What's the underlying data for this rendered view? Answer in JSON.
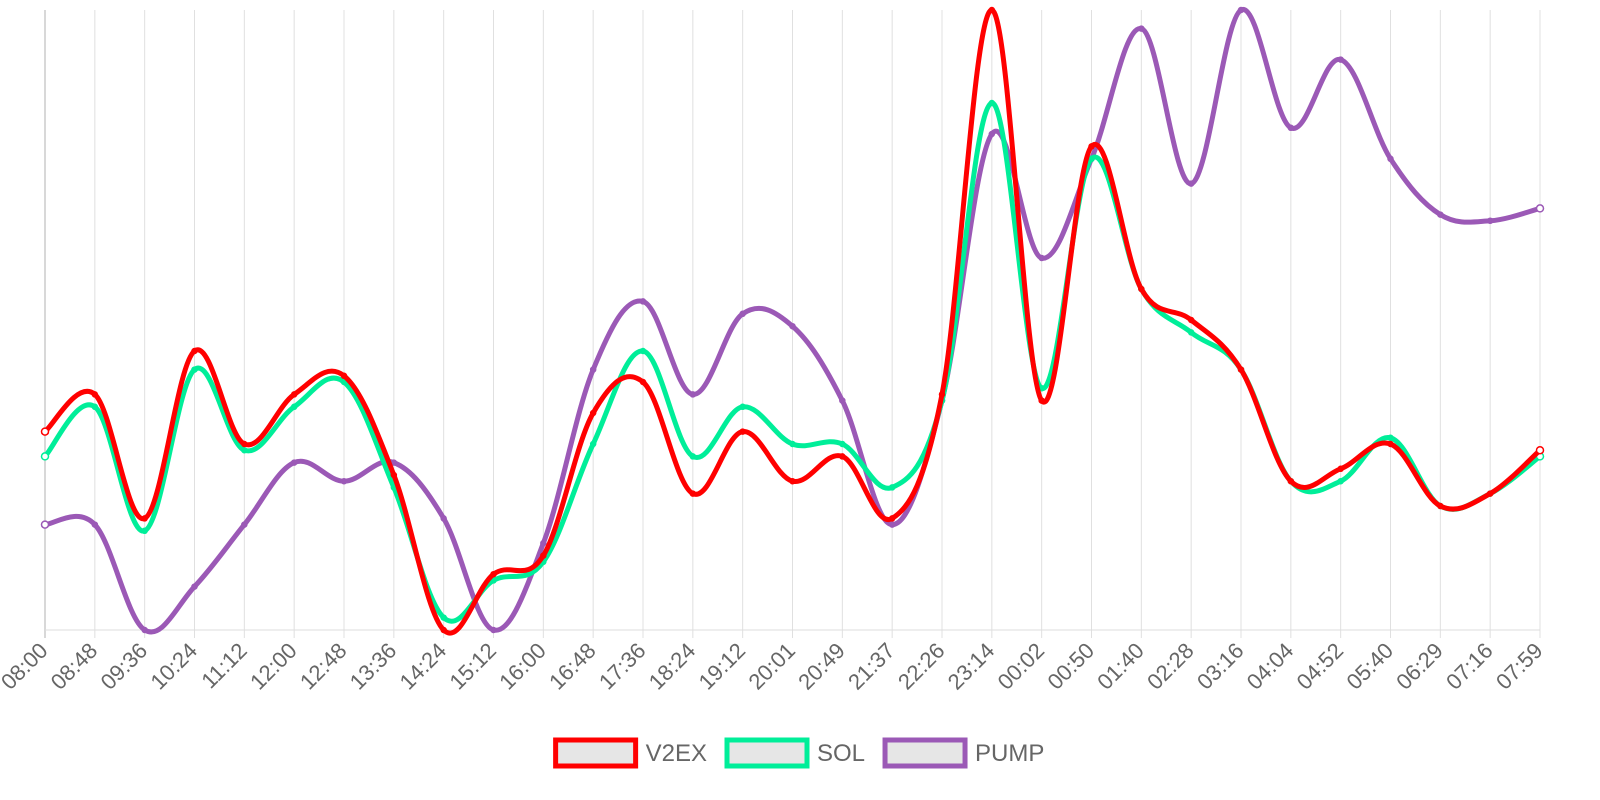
{
  "chart_data": {
    "type": "line",
    "title": "",
    "xlabel": "",
    "ylabel": "",
    "grid": true,
    "legend_position": "bottom",
    "ylim": [
      0,
      100
    ],
    "x": [
      "08:00",
      "08:48",
      "09:36",
      "10:24",
      "11:12",
      "12:00",
      "12:48",
      "13:36",
      "14:24",
      "15:12",
      "16:00",
      "16:48",
      "17:36",
      "18:24",
      "19:12",
      "20:01",
      "20:49",
      "21:37",
      "22:26",
      "23:14",
      "00:02",
      "00:50",
      "01:40",
      "02:28",
      "03:16",
      "04:04",
      "04:52",
      "05:40",
      "06:29",
      "07:16",
      "07:59"
    ],
    "series": [
      {
        "name": "V2EX",
        "color": "#ff0000",
        "values": [
          32,
          38,
          18,
          45,
          30,
          38,
          41,
          25,
          0,
          9,
          12,
          35,
          40,
          22,
          32,
          24,
          28,
          18,
          38,
          100,
          37,
          78,
          55,
          50,
          42,
          24,
          26,
          30,
          20,
          22,
          29
        ]
      },
      {
        "name": "SOL",
        "color": "#00ee99",
        "values": [
          28,
          36,
          16,
          42,
          29,
          36,
          40,
          23,
          2,
          8,
          11,
          30,
          45,
          28,
          36,
          30,
          30,
          23,
          37,
          85,
          39,
          76,
          55,
          48,
          42,
          24,
          24,
          31,
          20,
          22,
          28
        ]
      },
      {
        "name": "PUMP",
        "color": "#9b59b6",
        "values": [
          17,
          17,
          0,
          7,
          17,
          27,
          24,
          27,
          18,
          0,
          14,
          42,
          53,
          38,
          51,
          49,
          37,
          17,
          37,
          80,
          60,
          76,
          97,
          72,
          100,
          81,
          92,
          76,
          67,
          66,
          68
        ]
      }
    ]
  }
}
